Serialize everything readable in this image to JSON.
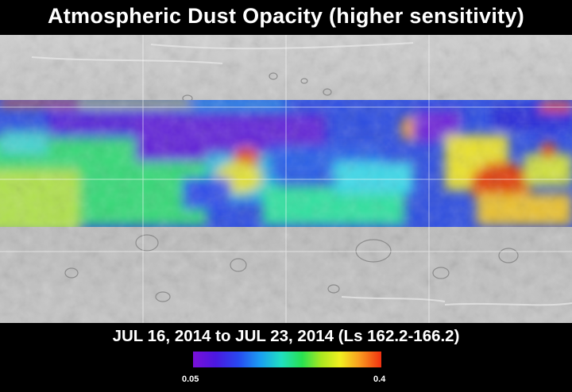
{
  "title": "Atmospheric Dust Opacity (higher sensitivity)",
  "date_range": "JUL 16, 2014 to JUL 23, 2014 (Ls 162.2-166.2)",
  "colorbar": {
    "min_label": "0.05",
    "max_label": "0.4",
    "min_value": 0.05,
    "max_value": 0.4,
    "colors": [
      "#7a10d8",
      "#2848f0",
      "#1aa0f0",
      "#20e0c0",
      "#28e050",
      "#f0f020",
      "#f8a020",
      "#f03010"
    ]
  },
  "map": {
    "background": "grayscale shaded relief of Mars",
    "grid": true
  }
}
